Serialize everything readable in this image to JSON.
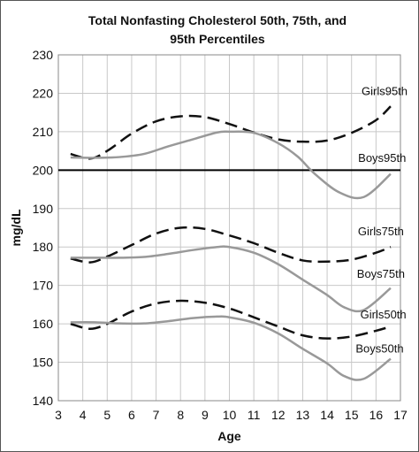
{
  "chart_data": {
    "type": "line",
    "title_lines": [
      "Total Nonfasting Cholesterol 50th, 75th, and",
      "95th Percentiles"
    ],
    "xlabel": "Age",
    "ylabel": "mg/dL",
    "xlim": [
      3,
      17
    ],
    "ylim": [
      140,
      230
    ],
    "xticks": [
      3,
      4,
      5,
      6,
      7,
      8,
      9,
      10,
      11,
      12,
      13,
      14,
      15,
      16,
      17
    ],
    "yticks": [
      140,
      150,
      160,
      170,
      180,
      190,
      200,
      210,
      220,
      230
    ],
    "grid": true,
    "colors": {
      "girls": "#111111",
      "boys": "#999999",
      "boys95": "#000000",
      "grid": "#c8c8c8"
    },
    "series": [
      {
        "name": "Girls95th",
        "style": "dashed",
        "color_key": "girls",
        "x": [
          3.5,
          4.3,
          5.0,
          6.0,
          7.0,
          8.0,
          9.0,
          10.0,
          11.0,
          12.0,
          13.0,
          14.0,
          15.0,
          16.0,
          16.6
        ],
        "y": [
          204.2,
          203.0,
          205.0,
          209.5,
          212.7,
          214.0,
          213.8,
          212.0,
          209.8,
          208.0,
          207.4,
          207.7,
          209.7,
          213.0,
          216.6
        ]
      },
      {
        "name": "Boys95th",
        "style": "solid",
        "color_key": "boys95",
        "x": [
          3,
          17
        ],
        "y": [
          200,
          200
        ]
      },
      {
        "name": "",
        "style": "solid",
        "color_key": "boys",
        "x": [
          3.5,
          4.5,
          5.5,
          6.5,
          7.5,
          8.5,
          9.5,
          10.0,
          11.0,
          12.0,
          12.8,
          13.5,
          14.5,
          15.5,
          16.6
        ],
        "y": [
          203.3,
          203.2,
          203.4,
          204.2,
          206.2,
          208.0,
          209.8,
          210.0,
          209.7,
          207.0,
          203.5,
          199.0,
          194.2,
          193.0,
          199.0
        ]
      },
      {
        "name": "Girls75th",
        "style": "dashed",
        "color_key": "girls",
        "x": [
          3.5,
          4.3,
          5.0,
          6.0,
          7.0,
          8.0,
          9.0,
          10.0,
          11.0,
          12.0,
          13.0,
          14.0,
          15.0,
          16.0,
          16.6
        ],
        "y": [
          177.0,
          176.0,
          177.5,
          180.5,
          183.5,
          185.0,
          184.7,
          183.0,
          181.0,
          178.5,
          176.5,
          176.2,
          176.7,
          178.5,
          180.0
        ]
      },
      {
        "name": "Boys75th",
        "style": "solid",
        "color_key": "boys",
        "x": [
          3.5,
          4.5,
          5.5,
          6.5,
          7.5,
          8.5,
          9.5,
          10.0,
          11.0,
          12.0,
          13.0,
          14.0,
          14.7,
          15.5,
          16.6
        ],
        "y": [
          177.2,
          177.2,
          177.2,
          177.4,
          178.2,
          179.2,
          180.0,
          180.0,
          178.5,
          175.5,
          171.5,
          167.5,
          164.3,
          163.6,
          169.3
        ]
      },
      {
        "name": "Girls50th",
        "style": "dashed",
        "color_key": "girls",
        "x": [
          3.5,
          4.3,
          5.0,
          6.0,
          7.0,
          8.0,
          9.0,
          10.0,
          11.0,
          12.0,
          13.0,
          14.0,
          15.0,
          16.0,
          16.6
        ],
        "y": [
          160.0,
          158.7,
          160.0,
          163.2,
          165.3,
          166.0,
          165.5,
          164.0,
          161.7,
          159.3,
          157.0,
          156.2,
          156.7,
          158.2,
          159.3
        ]
      },
      {
        "name": "Boys50th",
        "style": "solid",
        "color_key": "boys",
        "x": [
          3.5,
          4.5,
          5.5,
          6.5,
          7.5,
          8.5,
          9.5,
          10.0,
          11.0,
          12.0,
          13.0,
          14.0,
          14.7,
          15.5,
          16.6
        ],
        "y": [
          160.4,
          160.4,
          160.1,
          160.1,
          160.7,
          161.5,
          161.9,
          161.7,
          160.3,
          157.5,
          153.5,
          149.7,
          146.4,
          145.7,
          150.9
        ]
      }
    ],
    "series_labels": [
      {
        "text": "Girls95th",
        "x": 16.35,
        "y": 219.5
      },
      {
        "text": "Boys95th",
        "x": 16.25,
        "y": 202.2
      },
      {
        "text": "Girls75th",
        "x": 16.2,
        "y": 183.0
      },
      {
        "text": "Boys75th",
        "x": 16.2,
        "y": 172.0
      },
      {
        "text": "Girls50th",
        "x": 16.3,
        "y": 161.4
      },
      {
        "text": "Boys50th",
        "x": 16.15,
        "y": 152.5
      }
    ]
  }
}
